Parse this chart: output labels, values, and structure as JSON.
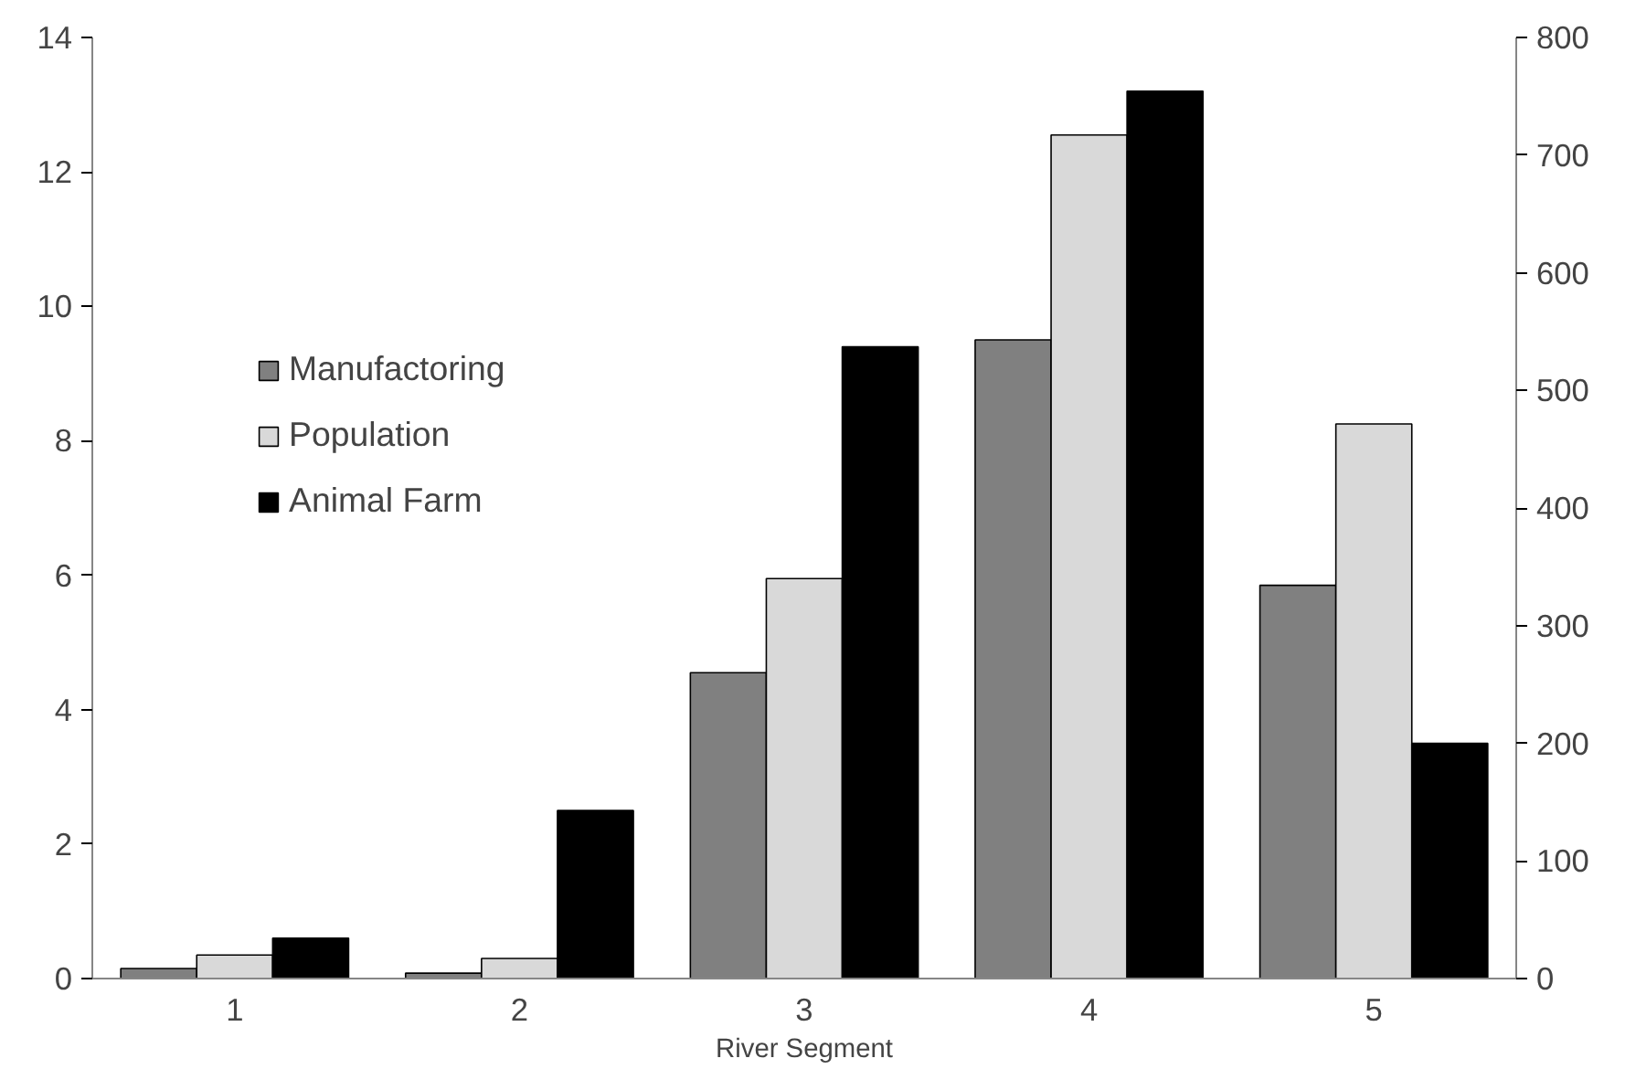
{
  "chart_data": {
    "type": "bar",
    "xlabel": "River Segment",
    "categories": [
      "1",
      "2",
      "3",
      "4",
      "5"
    ],
    "series": [
      {
        "name": "Manufactoring",
        "color": "#808080",
        "values": [
          0.15,
          0.08,
          4.55,
          9.5,
          5.85
        ]
      },
      {
        "name": "Population",
        "color": "#d9d9d9",
        "values": [
          0.35,
          0.3,
          5.95,
          12.55,
          8.25
        ]
      },
      {
        "name": "Animal Farm",
        "color": "#000000",
        "values": [
          0.6,
          2.5,
          9.4,
          13.2,
          3.5
        ]
      }
    ],
    "ylim": [
      0,
      14
    ],
    "yticks": [
      0,
      2,
      4,
      6,
      8,
      10,
      12,
      14
    ],
    "y2lim": [
      0,
      800
    ],
    "y2ticks": [
      0,
      100,
      200,
      300,
      400,
      500,
      600,
      700,
      800
    ],
    "legend": "top left",
    "grid": false
  }
}
